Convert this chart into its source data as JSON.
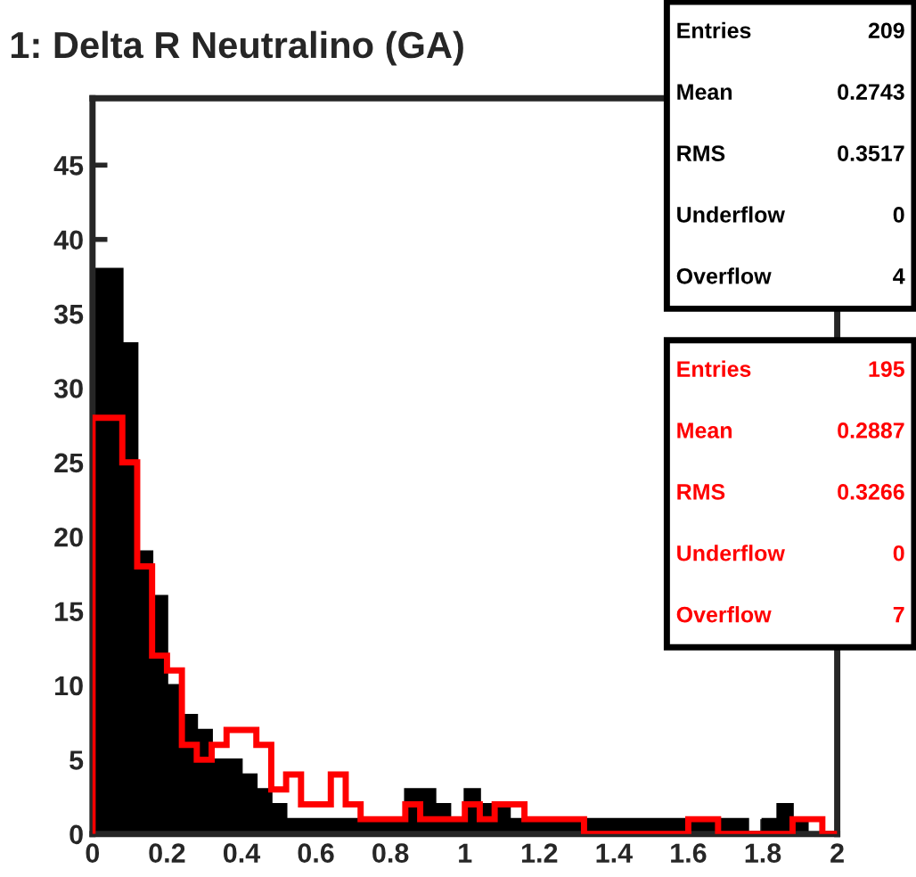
{
  "chart_data": {
    "type": "histogram",
    "title": "1: Delta R Neutralino (GA)",
    "bins": [
      0,
      0.04,
      0.08,
      0.12,
      0.16,
      0.2,
      0.24,
      0.28,
      0.32,
      0.36,
      0.4,
      0.44,
      0.48,
      0.52,
      0.56,
      0.6,
      0.64,
      0.68,
      0.72,
      0.76,
      0.8,
      0.84,
      0.88,
      0.92,
      0.96,
      1,
      1.04,
      1.08,
      1.12,
      1.16,
      1.2,
      1.24,
      1.28,
      1.32,
      1.36,
      1.4,
      1.44,
      1.48,
      1.52,
      1.56,
      1.6,
      1.64,
      1.68,
      1.72,
      1.76,
      1.8,
      1.84,
      1.88,
      1.92,
      1.96,
      2
    ],
    "series": [
      {
        "color": "#000000",
        "values": [
          38,
          38,
          33,
          19,
          16,
          10,
          8,
          7,
          5,
          5,
          4,
          3,
          2,
          1,
          1,
          1,
          1,
          1,
          1,
          1,
          1,
          3,
          3,
          2,
          1,
          3,
          2,
          2,
          1,
          1,
          1,
          1,
          1,
          1,
          1,
          1,
          1,
          1,
          1,
          1,
          1,
          1,
          1,
          1,
          0,
          1,
          2,
          1,
          0,
          0
        ]
      },
      {
        "color": "#ff0000",
        "values": [
          28,
          28,
          25,
          18,
          12,
          11,
          6,
          5,
          6,
          7,
          7,
          6,
          3,
          4,
          2,
          2,
          4,
          2,
          1,
          1,
          1,
          2,
          1,
          1,
          1,
          2,
          1,
          2,
          2,
          1,
          1,
          1,
          1,
          0,
          0,
          0,
          0,
          0,
          0,
          0,
          1,
          1,
          0,
          0,
          0,
          0,
          0,
          1,
          1,
          0
        ]
      }
    ],
    "xlim": [
      0,
      2
    ],
    "ylim": [
      0,
      49.5
    ],
    "xticks": [
      0,
      0.2,
      0.4,
      0.6,
      0.8,
      1,
      1.2,
      1.4,
      1.6,
      1.8,
      2
    ],
    "yticks": [
      0,
      5,
      10,
      15,
      20,
      25,
      30,
      35,
      40,
      45
    ],
    "grid": false,
    "legend": false,
    "annotations": [
      "Entries",
      "209",
      "Mean",
      "0.2743",
      "RMS",
      "0.3517",
      "Underflow",
      "0",
      "Overflow",
      "4",
      "Entries",
      "195",
      "Mean",
      "0.2887",
      "RMS",
      "0.3266",
      "Underflow",
      "0",
      "Overflow",
      "7"
    ]
  }
}
